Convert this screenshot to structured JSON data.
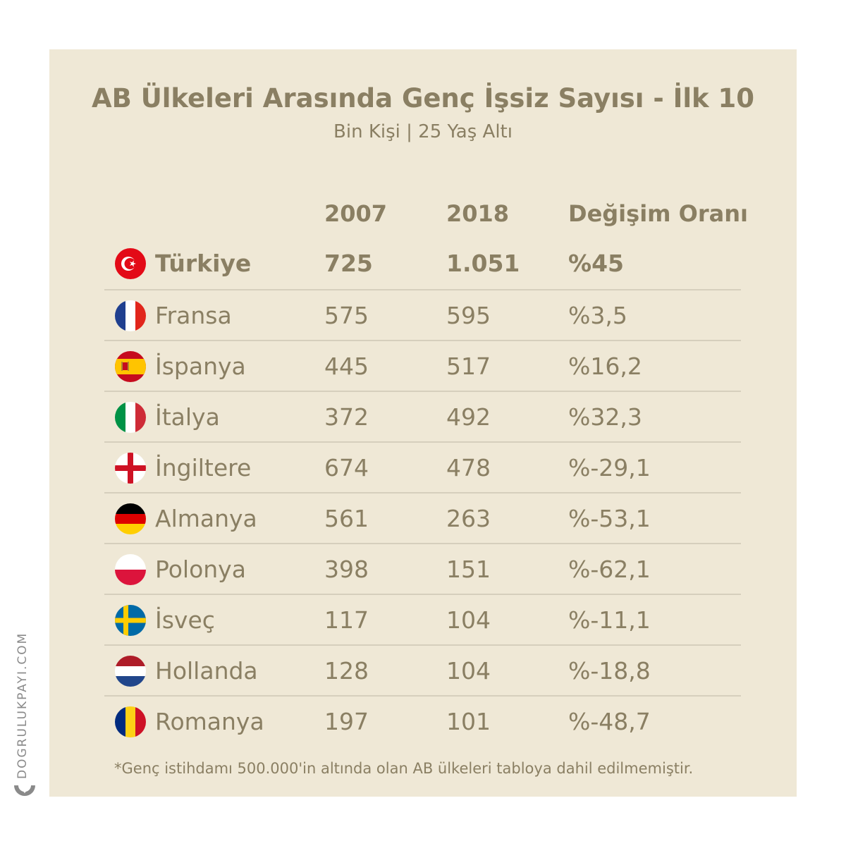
{
  "header": {
    "title": "AB Ülkeleri Arasında Genç İşsiz Sayısı - İlk 10",
    "subtitle": "Bin Kişi | 25 Yaş Altı"
  },
  "chart_data": {
    "type": "table",
    "columns": [
      "2007",
      "2018",
      "Değişim Oranı"
    ],
    "rows": [
      {
        "country": "Türkiye",
        "flag": "turkey-flag",
        "v2007": "725",
        "v2018": "1.051",
        "change": "%45",
        "highlight": true
      },
      {
        "country": "Fransa",
        "flag": "france-flag",
        "v2007": "575",
        "v2018": "595",
        "change": "%3,5"
      },
      {
        "country": "İspanya",
        "flag": "spain-flag",
        "v2007": "445",
        "v2018": "517",
        "change": "%16,2"
      },
      {
        "country": "İtalya",
        "flag": "italy-flag",
        "v2007": "372",
        "v2018": "492",
        "change": "%32,3"
      },
      {
        "country": "İngiltere",
        "flag": "england-flag",
        "v2007": "674",
        "v2018": "478",
        "change": "%-29,1"
      },
      {
        "country": "Almanya",
        "flag": "germany-flag",
        "v2007": "561",
        "v2018": "263",
        "change": "%-53,1"
      },
      {
        "country": "Polonya",
        "flag": "poland-flag",
        "v2007": "398",
        "v2018": "151",
        "change": "%-62,1"
      },
      {
        "country": "İsveç",
        "flag": "sweden-flag",
        "v2007": "117",
        "v2018": "104",
        "change": "%-11,1"
      },
      {
        "country": "Hollanda",
        "flag": "netherlands-flag",
        "v2007": "128",
        "v2018": "104",
        "change": "%-18,8"
      },
      {
        "country": "Romanya",
        "flag": "romania-flag",
        "v2007": "197",
        "v2018": "101",
        "change": "%-48,7"
      }
    ]
  },
  "footer": {
    "note": "*Genç istihdamı 500.000'in altında olan AB ülkeleri tabloya dahil edilmemiştir.",
    "brand": "DOGRULUKPAYI.COM"
  },
  "colors": {
    "background": "#efe8d6",
    "text": "#8a7f63",
    "divider": "#d6cfbd"
  }
}
